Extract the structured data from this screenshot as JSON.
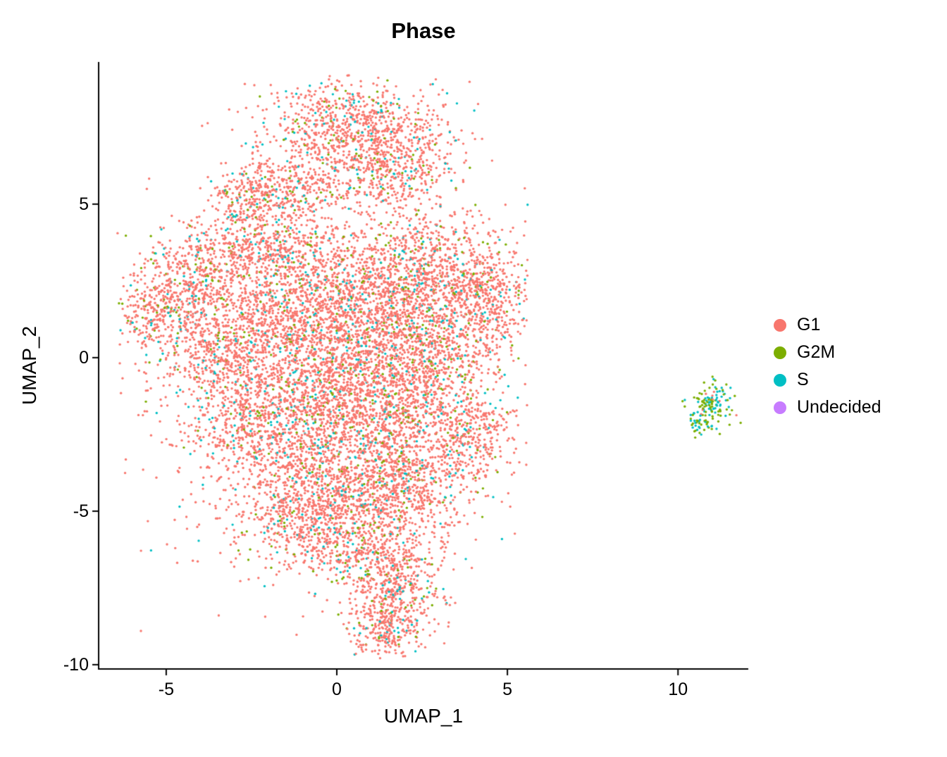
{
  "chart_data": {
    "type": "scatter",
    "title": "Phase",
    "xlabel": "UMAP_1",
    "ylabel": "UMAP_2",
    "xlim": [
      -6.98,
      12.06
    ],
    "ylim": [
      -10.14,
      9.63
    ],
    "x_ticks": [
      -5,
      0,
      5,
      10
    ],
    "y_ticks": [
      5,
      0,
      -5,
      -10
    ],
    "grid": false,
    "legend_position": "right",
    "legend": [
      {
        "label": "G1",
        "color": "#F8766D"
      },
      {
        "label": "G2M",
        "color": "#7CAE00"
      },
      {
        "label": "S",
        "color": "#00BFC4"
      },
      {
        "label": "Undecided",
        "color": "#C77CFF"
      }
    ],
    "point_radius": 1.7,
    "seed": 42,
    "point_mix_default": {
      "G1": 0.87,
      "G2M": 0.06,
      "S": 0.07,
      "Undecided": 0
    },
    "clusters": [
      {
        "x": 0.3,
        "y": 7.6,
        "sx": 1.3,
        "sy": 0.8,
        "n": 700
      },
      {
        "x": 1.6,
        "y": 6.3,
        "sx": 1.0,
        "sy": 0.8,
        "n": 500
      },
      {
        "x": -1.3,
        "y": 5.6,
        "sx": 0.9,
        "sy": 0.6,
        "n": 350
      },
      {
        "x": -2.7,
        "y": 5.2,
        "sx": 0.5,
        "sy": 0.4,
        "n": 150
      },
      {
        "x": -2.2,
        "y": 3.6,
        "sx": 1.0,
        "sy": 0.7,
        "n": 450
      },
      {
        "x": -4.2,
        "y": 2.6,
        "sx": 0.8,
        "sy": 0.8,
        "n": 350
      },
      {
        "x": -5.2,
        "y": 1.5,
        "sx": 0.7,
        "sy": 0.7,
        "n": 300
      },
      {
        "x": -3.5,
        "y": 0.3,
        "sx": 0.9,
        "sy": 0.9,
        "n": 450
      },
      {
        "x": -1.5,
        "y": 1.5,
        "sx": 1.2,
        "sy": 1.2,
        "n": 700
      },
      {
        "x": 0.8,
        "y": 2.2,
        "sx": 1.4,
        "sy": 1.2,
        "n": 900
      },
      {
        "x": 2.8,
        "y": 2.8,
        "sx": 1.1,
        "sy": 1.0,
        "n": 600
      },
      {
        "x": 4.3,
        "y": 1.8,
        "sx": 0.7,
        "sy": 1.0,
        "n": 450
      },
      {
        "x": 0.3,
        "y": 0.0,
        "sx": 1.5,
        "sy": 1.2,
        "n": 900
      },
      {
        "x": 2.5,
        "y": 0.2,
        "sx": 1.2,
        "sy": 1.0,
        "n": 600
      },
      {
        "x": -2.5,
        "y": -2.0,
        "sx": 1.0,
        "sy": 1.0,
        "n": 500
      },
      {
        "x": -0.5,
        "y": -2.2,
        "sx": 1.3,
        "sy": 1.0,
        "n": 700
      },
      {
        "x": 1.8,
        "y": -1.8,
        "sx": 1.2,
        "sy": 1.0,
        "n": 600
      },
      {
        "x": 4.0,
        "y": -2.6,
        "sx": 0.6,
        "sy": 0.9,
        "n": 300
      },
      {
        "x": 0.3,
        "y": -4.3,
        "sx": 1.4,
        "sy": 1.0,
        "n": 700
      },
      {
        "x": 2.2,
        "y": -4.0,
        "sx": 0.9,
        "sy": 0.8,
        "n": 400
      },
      {
        "x": -1.2,
        "y": -5.3,
        "sx": 0.9,
        "sy": 0.8,
        "n": 400
      },
      {
        "x": 1.0,
        "y": -6.2,
        "sx": 1.0,
        "sy": 0.8,
        "n": 450
      },
      {
        "x": 1.8,
        "y": -7.6,
        "sx": 0.7,
        "sy": 0.6,
        "n": 300
      },
      {
        "x": 1.4,
        "y": -8.9,
        "sx": 0.55,
        "sy": 0.45,
        "n": 250
      },
      {
        "x": 0.0,
        "y": -1.0,
        "sx": 3.0,
        "sy": 3.5,
        "n": 800
      },
      {
        "x": 11.0,
        "y": -1.6,
        "sx": 0.28,
        "sy": 0.35,
        "n": 130,
        "mix": {
          "G1": 0.06,
          "G2M": 0.52,
          "S": 0.42,
          "Undecided": 0
        }
      },
      {
        "x": 10.6,
        "y": -2.1,
        "sx": 0.15,
        "sy": 0.25,
        "n": 30,
        "mix": {
          "G1": 0.0,
          "G2M": 0.6,
          "S": 0.4,
          "Undecided": 0
        }
      }
    ]
  }
}
